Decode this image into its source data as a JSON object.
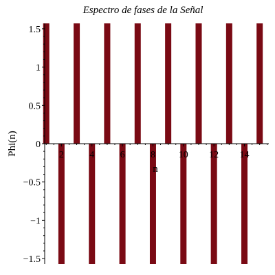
{
  "chart_data": {
    "type": "bar",
    "title": "Espectro de fases de la Señal",
    "xlabel": "n",
    "ylabel": "Phi(n)",
    "xlim": [
      0.9,
      15.6
    ],
    "ylim": [
      -1.5708,
      1.5708
    ],
    "x_ticks": [
      2,
      4,
      6,
      8,
      10,
      12,
      14
    ],
    "y_ticks": [
      {
        "value": -1.5,
        "label": "−1.5"
      },
      {
        "value": -1,
        "label": "−1"
      },
      {
        "value": -0.5,
        "label": "−0.5"
      },
      {
        "value": 0,
        "label": "0"
      },
      {
        "value": 0.5,
        "label": "0.5"
      },
      {
        "value": 1,
        "label": "1"
      },
      {
        "value": 1.5,
        "label": "1.5"
      }
    ],
    "x": [
      1,
      2,
      3,
      4,
      5,
      6,
      7,
      8,
      9,
      10,
      11,
      12,
      13,
      14,
      15
    ],
    "values": [
      1.5708,
      -1.5708,
      1.5708,
      -1.5708,
      1.5708,
      -1.5708,
      1.5708,
      -1.5708,
      1.5708,
      -1.5708,
      1.5708,
      -1.5708,
      1.5708,
      -1.5708,
      1.5708
    ],
    "bar_color": "#7a0a14",
    "grid": false
  }
}
